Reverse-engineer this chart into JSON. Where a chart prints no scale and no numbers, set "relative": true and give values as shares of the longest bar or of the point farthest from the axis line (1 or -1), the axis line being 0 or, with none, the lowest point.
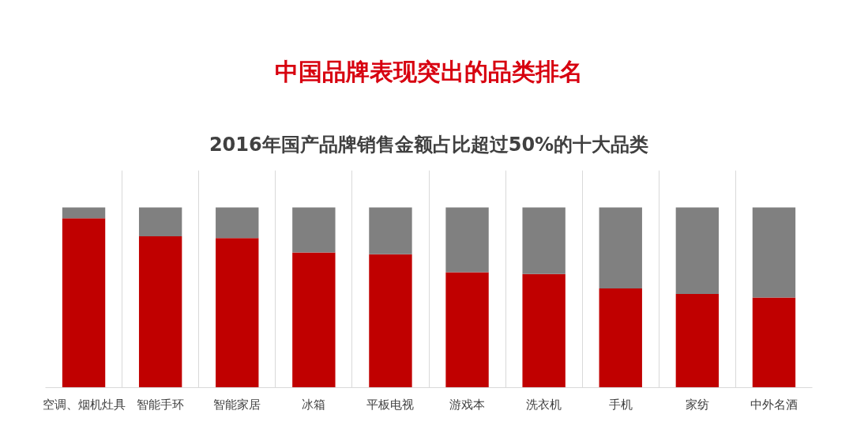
{
  "chart_data": {
    "type": "bar",
    "title": "中国品牌表现突出的品类排名",
    "subtitle": "2016年国产品牌销售金额占比超过50%的十大品类",
    "categories": [
      "空调、烟机灶具",
      "智能手环",
      "智能家居",
      "冰箱",
      "平板电视",
      "游戏本",
      "洗衣机",
      "手机",
      "家纺",
      "中外名酒"
    ],
    "stacked": true,
    "relative": true,
    "grid": "x",
    "series": [
      {
        "color": "#c00000",
        "values": [
          0.94,
          0.84,
          0.83,
          0.75,
          0.74,
          0.64,
          0.63,
          0.55,
          0.52,
          0.5
        ]
      },
      {
        "color": "#808080",
        "values": [
          0.06,
          0.16,
          0.17,
          0.25,
          0.26,
          0.36,
          0.37,
          0.45,
          0.48,
          0.5
        ]
      }
    ]
  }
}
